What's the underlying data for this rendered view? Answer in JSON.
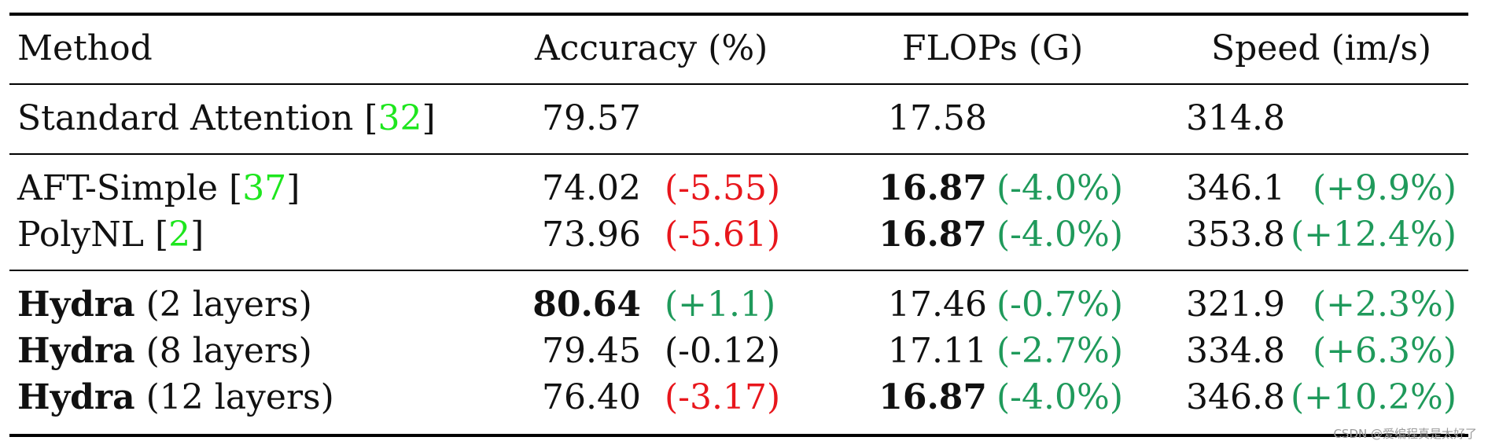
{
  "header": {
    "method": "Method",
    "accuracy": "Accuracy (%)",
    "flops": "FLOPs (G)",
    "speed": "Speed (im/s)"
  },
  "rows": [
    {
      "method": "Standard Attention",
      "cite": "32",
      "suffix": "",
      "accuracy": "79.57",
      "accuracy_delta": "",
      "flops": "17.58",
      "flops_delta": "",
      "speed": "314.8",
      "speed_delta": ""
    },
    {
      "method": "AFT-Simple",
      "cite": "37",
      "suffix": "",
      "accuracy": "74.02",
      "accuracy_delta": "(-5.55)",
      "flops": "16.87",
      "flops_delta": "(-4.0%)",
      "speed": "346.1",
      "speed_delta": "(+9.9%)"
    },
    {
      "method": "PolyNL",
      "cite": "2",
      "suffix": "",
      "accuracy": "73.96",
      "accuracy_delta": "(-5.61)",
      "flops": "16.87",
      "flops_delta": "(-4.0%)",
      "speed": "353.8",
      "speed_delta": "(+12.4%)"
    },
    {
      "method": "Hydra",
      "cite": "",
      "suffix": "(2 layers)",
      "accuracy": "80.64",
      "accuracy_delta": "(+1.1)",
      "flops": "17.46",
      "flops_delta": "(-0.7%)",
      "speed": "321.9",
      "speed_delta": "(+2.3%)"
    },
    {
      "method": "Hydra",
      "cite": "",
      "suffix": "(8 layers)",
      "accuracy": "79.45",
      "accuracy_delta": "(-0.12)",
      "flops": "17.11",
      "flops_delta": "(-2.7%)",
      "speed": "334.8",
      "speed_delta": "(+6.3%)"
    },
    {
      "method": "Hydra",
      "cite": "",
      "suffix": "(12 layers)",
      "accuracy": "76.40",
      "accuracy_delta": "(-3.17)",
      "flops": "16.87",
      "flops_delta": "(-4.0%)",
      "speed": "346.8",
      "speed_delta": "(+10.2%)"
    }
  ],
  "colors": {
    "negative": "#e8161c",
    "positive": "#1f9a5b",
    "neutral": "#111111",
    "citation": "#1ee61e"
  },
  "watermark": "CSDN @爱编程真是太好了"
}
